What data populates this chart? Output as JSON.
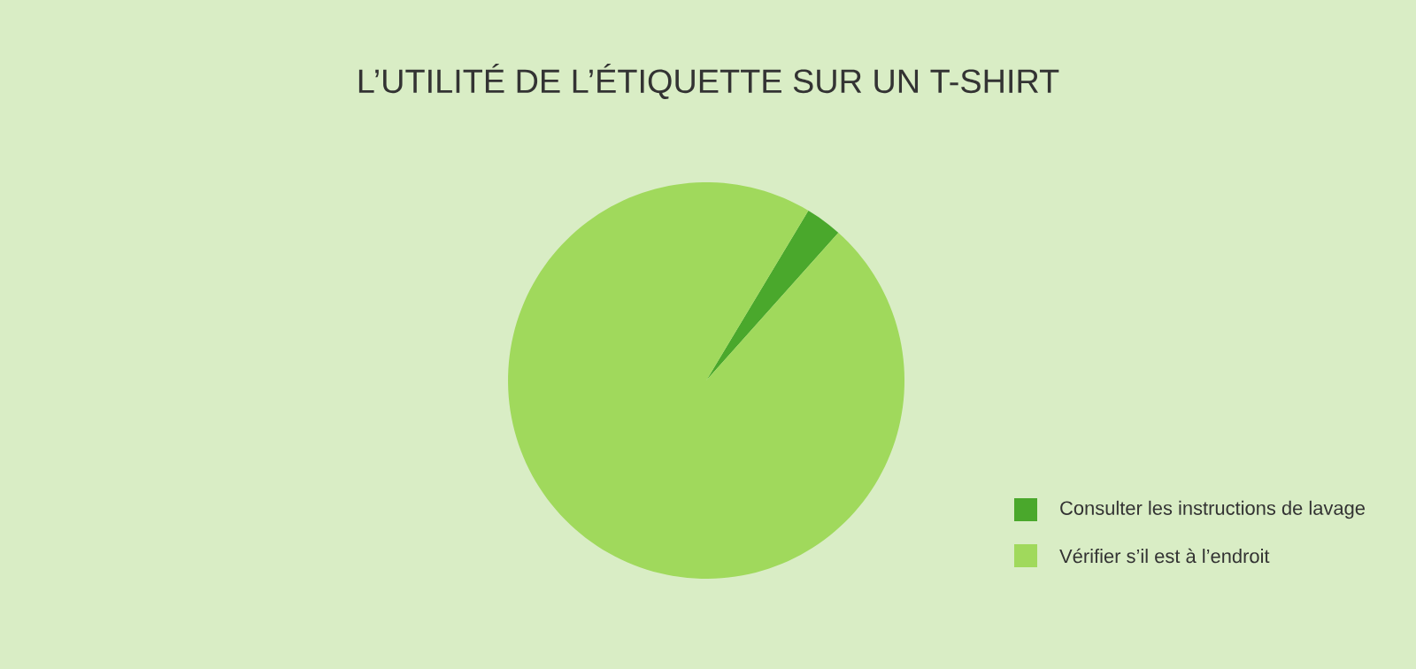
{
  "chart_data": {
    "type": "pie",
    "title": "L’UTILITÉ DE L’ÉTIQUETTE SUR UN T-SHIRT",
    "categories": [
      "Consulter les instructions de lavage",
      "Vérifier s’il est à l’endroit"
    ],
    "values": [
      3,
      97
    ],
    "colors": [
      "#4aa82c",
      "#a0d95c"
    ],
    "legend": "bottom right"
  }
}
